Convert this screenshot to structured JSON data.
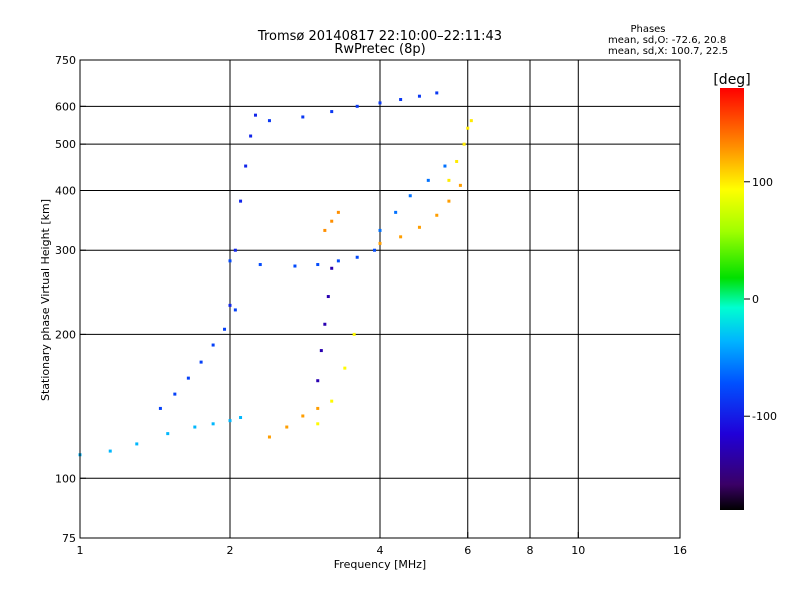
{
  "chart_data": {
    "type": "scatter",
    "title": "Tromsø 20140817 22:10:00–22:11:43",
    "subtitle": "RwPretec (8p)",
    "xlabel": "Frequency [MHz]",
    "ylabel": "Stationary phase Virtual Height [km]",
    "x_scale": "log",
    "y_scale": "log",
    "xlim": [
      1,
      16
    ],
    "ylim": [
      75,
      750
    ],
    "x_ticks": [
      "1",
      "2",
      "4",
      "6",
      "8",
      "10",
      "16"
    ],
    "y_ticks": [
      "75",
      "100",
      "200",
      "300",
      "400",
      "500",
      "600",
      "750"
    ],
    "x_grid": [
      2,
      4,
      6,
      8,
      10
    ],
    "y_grid": [
      100,
      200,
      300,
      400,
      500,
      600
    ],
    "stats": {
      "heading": "Phases",
      "line1": "mean, sd,O: -72.6, 20.8",
      "line2": "mean, sd,X: 100.7, 22.5"
    },
    "colorbar": {
      "label": "[deg]",
      "range": [
        -180,
        180
      ],
      "ticks": [
        "100",
        "0",
        "-100"
      ],
      "tick_values": [
        100,
        0,
        -100
      ]
    },
    "traces": [
      {
        "x": [
          1.0,
          1.15,
          1.3,
          1.5,
          1.7,
          1.85,
          2.0,
          2.1
        ],
        "y": [
          112,
          114,
          118,
          124,
          128,
          130,
          132,
          134
        ],
        "phase": -35
      },
      {
        "x": [
          1.45,
          1.55,
          1.65,
          1.75,
          1.85,
          1.95,
          2.05
        ],
        "y": [
          140,
          150,
          162,
          175,
          190,
          205,
          225
        ],
        "phase": -80
      },
      {
        "x": [
          2.0,
          2.05,
          2.1,
          2.15,
          2.2,
          2.25
        ],
        "y": [
          230,
          300,
          380,
          450,
          520,
          575
        ],
        "phase": -95
      },
      {
        "x": [
          2.0,
          2.3,
          2.7,
          3.0,
          3.3,
          3.6,
          3.9
        ],
        "y": [
          285,
          280,
          278,
          280,
          285,
          290,
          300
        ],
        "phase": -75
      },
      {
        "x": [
          2.4,
          2.8,
          3.2,
          3.6,
          4.0,
          4.4,
          4.8,
          5.2
        ],
        "y": [
          560,
          570,
          585,
          600,
          610,
          620,
          630,
          640
        ],
        "phase": -85
      },
      {
        "x": [
          3.0,
          3.05,
          3.1,
          3.15,
          3.2
        ],
        "y": [
          160,
          185,
          210,
          240,
          275
        ],
        "phase": -130
      },
      {
        "x": [
          2.4,
          2.6,
          2.8,
          3.0
        ],
        "y": [
          122,
          128,
          135,
          140
        ],
        "phase": 125
      },
      {
        "x": [
          3.0,
          3.2,
          3.4,
          3.55
        ],
        "y": [
          130,
          145,
          170,
          200
        ],
        "phase": 95
      },
      {
        "x": [
          3.1,
          3.2,
          3.3
        ],
        "y": [
          330,
          345,
          360
        ],
        "phase": 130
      },
      {
        "x": [
          4.0,
          4.4,
          4.8,
          5.2,
          5.5,
          5.8
        ],
        "y": [
          310,
          320,
          335,
          355,
          380,
          410
        ],
        "phase": 125
      },
      {
        "x": [
          5.5,
          5.7,
          5.9,
          6.0,
          6.1
        ],
        "y": [
          420,
          460,
          500,
          540,
          560
        ],
        "phase": 100
      },
      {
        "x": [
          4.0,
          4.3,
          4.6,
          5.0,
          5.4
        ],
        "y": [
          330,
          360,
          390,
          420,
          450
        ],
        "phase": -60
      }
    ]
  }
}
